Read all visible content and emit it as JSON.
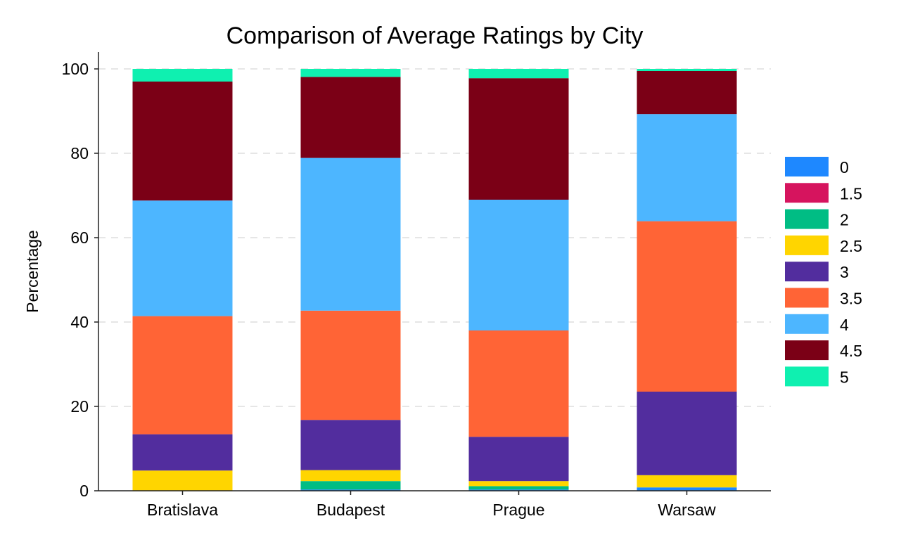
{
  "chart_data": {
    "type": "bar",
    "stacked": true,
    "title": "Comparison of Average Ratings by City",
    "xlabel": "",
    "ylabel": "Percentage",
    "ylim": [
      0,
      104
    ],
    "yticks": [
      0,
      20,
      40,
      60,
      80,
      100
    ],
    "grid": "horizontal-dashed",
    "legend_position": "right",
    "categories": [
      "Bratislava",
      "Budapest",
      "Prague",
      "Warsaw"
    ],
    "series": [
      {
        "name": "0",
        "color": "#1e88ff",
        "values": [
          0.0,
          0.3,
          0.3,
          0.8
        ]
      },
      {
        "name": "1.5",
        "color": "#d6145e",
        "values": [
          0.0,
          0.0,
          0.0,
          0.0
        ]
      },
      {
        "name": "2",
        "color": "#00bd84",
        "values": [
          0.0,
          2.0,
          0.8,
          0.0
        ]
      },
      {
        "name": "2.5",
        "color": "#ffd500",
        "values": [
          4.8,
          2.6,
          1.2,
          2.9
        ]
      },
      {
        "name": "3",
        "color": "#522d9e",
        "values": [
          8.6,
          11.9,
          10.5,
          19.8
        ]
      },
      {
        "name": "3.5",
        "color": "#ff6436",
        "values": [
          28.0,
          25.9,
          25.2,
          40.4
        ]
      },
      {
        "name": "4",
        "color": "#4db6ff",
        "values": [
          27.4,
          36.2,
          31.0,
          25.4
        ]
      },
      {
        "name": "4.5",
        "color": "#7b0016",
        "values": [
          28.2,
          19.2,
          28.8,
          10.2
        ]
      },
      {
        "name": "5",
        "color": "#0ff0b0",
        "values": [
          3.0,
          1.9,
          2.2,
          0.5
        ]
      }
    ]
  }
}
